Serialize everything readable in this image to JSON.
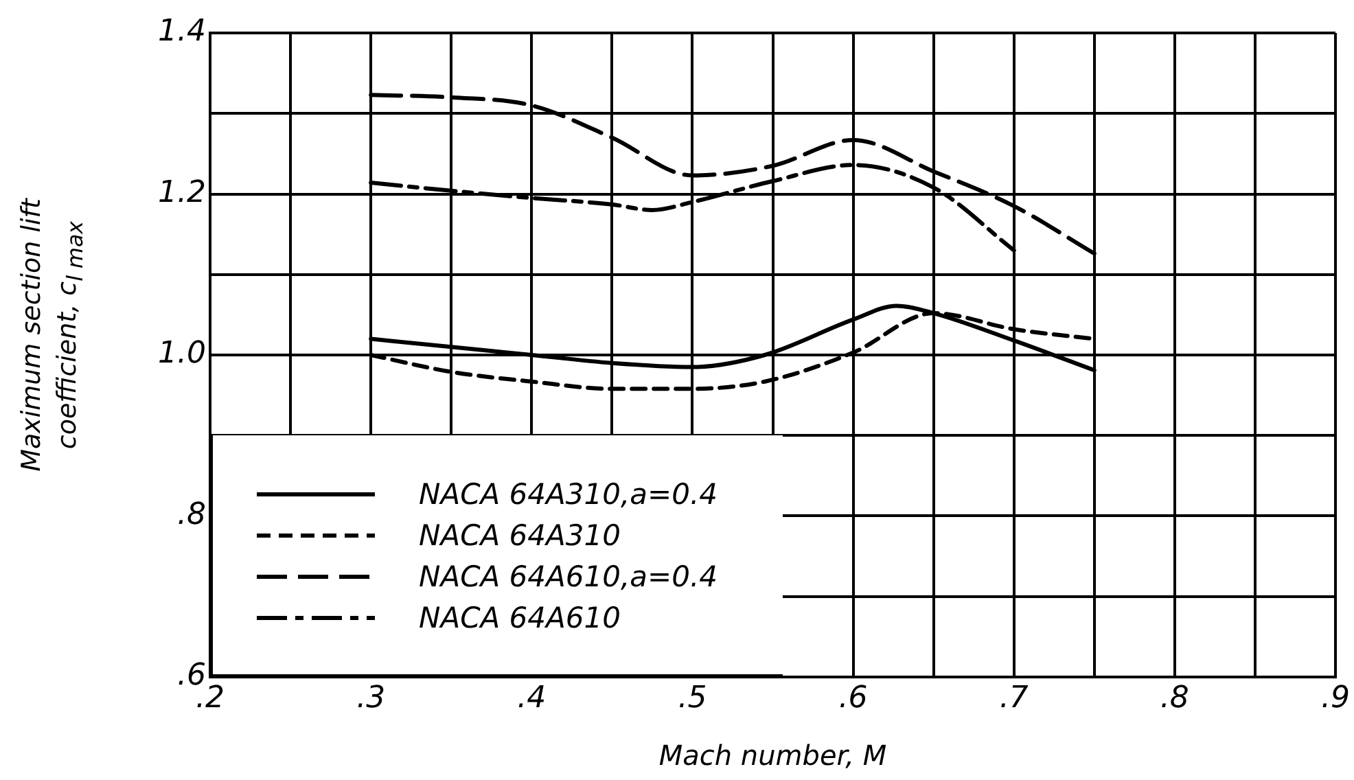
{
  "chart_data": {
    "type": "line",
    "xlabel": "Mach number, M",
    "ylabel": "Maximum section lift coefficient, c$_{l max}$",
    "xlim": [
      0.2,
      0.9
    ],
    "ylim": [
      0.6,
      1.4
    ],
    "xticks": [
      {
        "value": 0.2,
        "label": ".2"
      },
      {
        "value": 0.25,
        "label": null
      },
      {
        "value": 0.3,
        "label": ".3"
      },
      {
        "value": 0.35,
        "label": null
      },
      {
        "value": 0.4,
        "label": ".4"
      },
      {
        "value": 0.45,
        "label": null
      },
      {
        "value": 0.5,
        "label": ".5"
      },
      {
        "value": 0.55,
        "label": null
      },
      {
        "value": 0.6,
        "label": ".6"
      },
      {
        "value": 0.65,
        "label": null
      },
      {
        "value": 0.7,
        "label": ".7"
      },
      {
        "value": 0.75,
        "label": null
      },
      {
        "value": 0.8,
        "label": ".8"
      },
      {
        "value": 0.85,
        "label": null
      },
      {
        "value": 0.9,
        "label": ".9"
      }
    ],
    "yticks": [
      {
        "value": 0.6,
        "label": ".6"
      },
      {
        "value": 0.7,
        "label": null
      },
      {
        "value": 0.8,
        "label": ".8"
      },
      {
        "value": 0.9,
        "label": null
      },
      {
        "value": 1.0,
        "label": "1.0"
      },
      {
        "value": 1.1,
        "label": null
      },
      {
        "value": 1.2,
        "label": "1.2"
      },
      {
        "value": 1.3,
        "label": null
      },
      {
        "value": 1.4,
        "label": "1.4"
      }
    ],
    "grid": true,
    "legend": "bottom left",
    "marker": "none",
    "series": [
      {
        "name": "NACA 64A310,a=0.4",
        "color": "#000000",
        "line_style": "solid",
        "x": [
          0.3,
          0.35,
          0.4,
          0.45,
          0.5,
          0.545,
          0.6,
          0.627,
          0.65,
          0.7,
          0.75
        ],
        "values": [
          1.02,
          1.01,
          1.0,
          0.99,
          0.985,
          1.0,
          1.044,
          1.061,
          1.052,
          1.018,
          0.981
        ]
      },
      {
        "name": "NACA 64A310",
        "color": "#000000",
        "line_style": "dashed",
        "x": [
          0.3,
          0.35,
          0.4,
          0.45,
          0.5,
          0.545,
          0.6,
          0.65,
          0.7,
          0.75
        ],
        "values": [
          1.0,
          0.979,
          0.967,
          0.958,
          0.958,
          0.967,
          1.003,
          1.052,
          1.032,
          1.02
        ]
      },
      {
        "name": "NACA 64A610,a=0.4",
        "color": "#000000",
        "line_style": "longdash",
        "x": [
          0.3,
          0.35,
          0.4,
          0.45,
          0.5,
          0.55,
          0.6,
          0.65,
          0.7,
          0.75
        ],
        "values": [
          1.323,
          1.32,
          1.31,
          1.27,
          1.223,
          1.235,
          1.267,
          1.228,
          1.185,
          1.126
        ]
      },
      {
        "name": "NACA 64A610",
        "color": "#000000",
        "line_style": "dashdot",
        "x": [
          0.3,
          0.35,
          0.4,
          0.45,
          0.475,
          0.5,
          0.55,
          0.6,
          0.65,
          0.7
        ],
        "values": [
          1.214,
          1.204,
          1.195,
          1.187,
          1.18,
          1.19,
          1.216,
          1.236,
          1.208,
          1.13
        ]
      }
    ]
  }
}
